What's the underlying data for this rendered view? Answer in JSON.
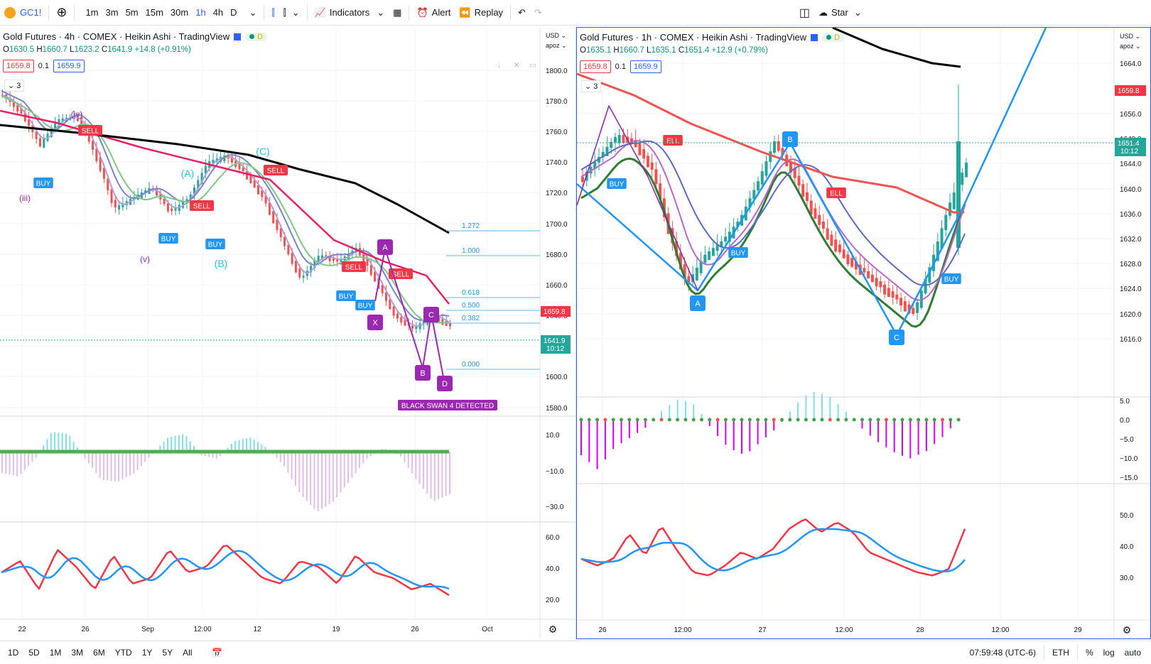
{
  "topbar": {
    "symbol": "GC1!",
    "intervals": [
      "1m",
      "3m",
      "5m",
      "15m",
      "30m",
      "1h",
      "4h",
      "D"
    ],
    "active_interval": "1h",
    "indicators": "Indicators",
    "alert": "Alert",
    "replay": "Replay",
    "star": "Star"
  },
  "left": {
    "title": "Gold Futures · 4h · COMEX · Heikin Ashi · TradingView",
    "ohlc": {
      "o": "O",
      "ov": "1630.5",
      "h": "H",
      "hv": "1660.7",
      "l": "L",
      "lv": "1623.2",
      "c": "C",
      "cv": "1641.9",
      "chg": "+14.8 (+0.91%)"
    },
    "bid": "1659.8",
    "spread": "0.1",
    "ask": "1659.9",
    "collapsed": "3",
    "currency": "USD",
    "scale_mode": "apoz",
    "yticks": [
      "1800.0",
      "1780.0",
      "1760.0",
      "1740.0",
      "1720.0",
      "1700.0",
      "1680.0",
      "1660.0",
      "1640.0",
      "1620.0",
      "1600.0",
      "1580.0"
    ],
    "xticks": [
      "22",
      "26",
      "Sep",
      "12:00",
      "12",
      "19",
      "26",
      "Oct"
    ],
    "macd_ticks": [
      "10.0",
      "−10.0",
      "−30.0"
    ],
    "rsi_ticks": [
      "60.0",
      "40.0",
      "20.0"
    ],
    "price_label_bid": "1659.8",
    "price_label_last": "1641.9",
    "price_label_time": "10:12",
    "fib": [
      {
        "v": "1.272"
      },
      {
        "v": "1.000"
      },
      {
        "v": "0.618"
      },
      {
        "v": "0.500"
      },
      {
        "v": "0.382"
      },
      {
        "v": "0.000"
      }
    ],
    "waves": {
      "iii": "(iii)",
      "iv": "(iv)",
      "v": "(v)",
      "A": "(A)",
      "B": "(B)",
      "C": "(C)"
    },
    "pattern": {
      "A": "A",
      "X": "X",
      "B": "B",
      "C": "C",
      "D": "D"
    },
    "black_swan": "BLACK SWAN 4 DETECTED",
    "signals": {
      "buy": "BUY",
      "sell": "SELL"
    }
  },
  "right": {
    "title": "Gold Futures · 1h · COMEX · Heikin Ashi · TradingView",
    "ohlc": {
      "o": "O",
      "ov": "1635.1",
      "h": "H",
      "hv": "1660.7",
      "l": "L",
      "lv": "1635.1",
      "c": "C",
      "cv": "1651.4",
      "chg": "+12.9 (+0.79%)"
    },
    "bid": "1659.8",
    "spread": "0.1",
    "ask": "1659.9",
    "collapsed": "3",
    "currency": "USD",
    "scale_mode": "apoz",
    "yticks": [
      "1664.0",
      "1656.0",
      "1648.0",
      "1644.0",
      "1640.0",
      "1636.0",
      "1632.0",
      "1628.0",
      "1624.0",
      "1620.0",
      "1616.0"
    ],
    "xticks": [
      "26",
      "12:00",
      "27",
      "12:00",
      "28",
      "12:00",
      "29"
    ],
    "macd_ticks": [
      "5.0",
      "0.0",
      "−5.0",
      "−10.0",
      "−15.0"
    ],
    "rsi_ticks": [
      "50.0",
      "40.0",
      "30.0"
    ],
    "price_label_bid": "1659.8",
    "price_label_last": "1651.4",
    "price_label_time": "10:12",
    "pattern": {
      "A": "A",
      "B": "B",
      "C": "C"
    },
    "signals": {
      "buy": "BUY",
      "sell": "ELL"
    }
  },
  "bottom": {
    "ranges": [
      "1D",
      "5D",
      "1M",
      "3M",
      "6M",
      "YTD",
      "1Y",
      "5Y",
      "All"
    ],
    "time": "07:59:48 (UTC-6)",
    "session": "ETH",
    "pct": "%",
    "log": "log",
    "auto": "auto"
  },
  "colors": {
    "up": "#26a69a",
    "down": "#ef5350",
    "blue": "#2962ff",
    "purple": "#9c27b0",
    "accent": "#2196f3"
  }
}
